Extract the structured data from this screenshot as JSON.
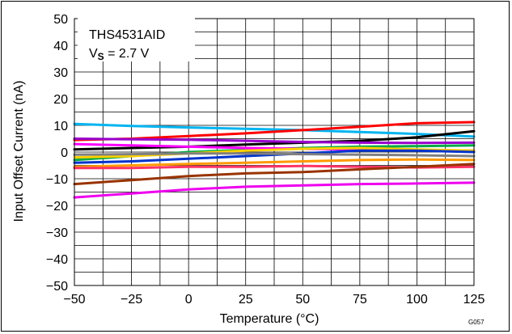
{
  "chart_data": {
    "type": "line",
    "title": "",
    "xlabel": "Temperature (°C)",
    "ylabel": "Input Offset Current (nA)",
    "xlim": [
      -50,
      125
    ],
    "ylim": [
      -50,
      50
    ],
    "xticks": [
      -50,
      -25,
      0,
      25,
      50,
      75,
      100,
      125
    ],
    "yticks": [
      -50,
      -40,
      -30,
      -20,
      -10,
      0,
      10,
      20,
      30,
      40,
      50
    ],
    "xtick_labels": [
      "−50",
      "−25",
      "0",
      "25",
      "50",
      "75",
      "100",
      "125"
    ],
    "ytick_labels": [
      "−50",
      "−40",
      "−30",
      "−20",
      "−10",
      "0",
      "10",
      "20",
      "30",
      "40",
      "50"
    ],
    "grid": true,
    "x": [
      -50,
      -25,
      0,
      25,
      50,
      75,
      100,
      125
    ],
    "annotation": {
      "device": "THS4531AID",
      "supply_prefix": "V",
      "supply_sub": "S",
      "supply_value": " = 2.7 V"
    },
    "figure_code": "G057",
    "series": [
      {
        "color": "#00b4f0",
        "values": [
          10.5,
          9.8,
          9.2,
          8.7,
          8.2,
          7.5,
          6.8,
          5.8
        ]
      },
      {
        "color": "#ff0000",
        "values": [
          4.5,
          5.0,
          6.0,
          7.0,
          8.2,
          9.5,
          10.8,
          11.2
        ]
      },
      {
        "color": "#000000",
        "values": [
          1.0,
          1.5,
          2.0,
          2.8,
          3.5,
          4.2,
          5.5,
          7.8
        ]
      },
      {
        "color": "#9900cc",
        "values": [
          5.0,
          4.8,
          4.6,
          4.2,
          3.8,
          3.5,
          3.4,
          3.5
        ]
      },
      {
        "color": "#00aa44",
        "values": [
          -3.0,
          -1.5,
          0.0,
          0.8,
          1.5,
          2.0,
          2.2,
          2.5
        ]
      },
      {
        "color": "#ff00ff",
        "values": [
          3.0,
          2.5,
          2.0,
          1.5,
          1.2,
          1.0,
          0.8,
          0.5
        ]
      },
      {
        "color": "#ffd000",
        "values": [
          -2.0,
          -1.5,
          -0.5,
          0.5,
          1.2,
          1.5,
          1.0,
          0.5
        ]
      },
      {
        "color": "#0033cc",
        "values": [
          -4.0,
          -3.5,
          -2.5,
          -1.5,
          -0.5,
          0.5,
          0.5,
          0.0
        ]
      },
      {
        "color": "#808080",
        "values": [
          -1.0,
          -0.8,
          -0.5,
          -0.5,
          -0.8,
          -1.0,
          -1.2,
          -1.5
        ]
      },
      {
        "color": "#ff9900",
        "values": [
          -5.5,
          -5.0,
          -4.5,
          -4.0,
          -3.5,
          -3.0,
          -2.8,
          -3.0
        ]
      },
      {
        "color": "#ff3366",
        "values": [
          -6.0,
          -6.0,
          -5.5,
          -5.5,
          -5.2,
          -5.5,
          -5.8,
          -5.5
        ]
      },
      {
        "color": "#993300",
        "values": [
          -12.0,
          -10.5,
          -9.0,
          -8.0,
          -7.5,
          -6.5,
          -5.5,
          -4.5
        ]
      },
      {
        "color": "#ee00ee",
        "values": [
          -17.0,
          -15.5,
          -14.0,
          -13.0,
          -12.5,
          -12.0,
          -11.8,
          -11.5
        ]
      }
    ]
  }
}
